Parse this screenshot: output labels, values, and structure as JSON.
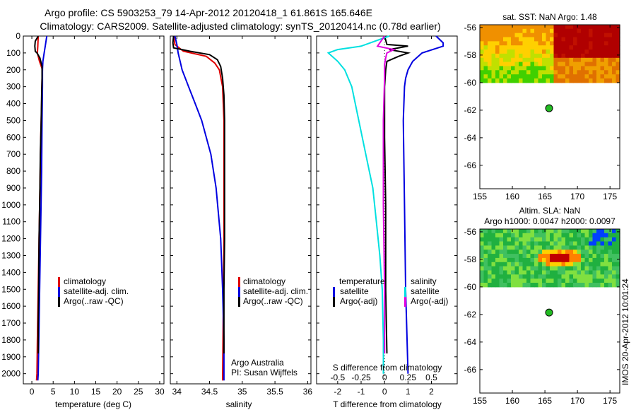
{
  "title_line1": "Argo profile: CS 5903253_79 14-Apr-2012 20120418_1 61.861S 165.646E",
  "title_line2": "Climatology: CARS2009. Satellite-adjusted climatology: synTS_20120414.nc (0.78d earlier)",
  "stamp": "IMOS 20-Apr-2012 10:01:24",
  "colors": {
    "red": "#e00000",
    "blue": "#0000e0",
    "black": "#000000",
    "cyan": "#00e0e0",
    "magenta": "#e000e0",
    "green": "#22bb22"
  },
  "chart_data": [
    {
      "type": "line",
      "xlabel": "temperature (deg C)",
      "xticks": [
        "0",
        "5",
        "10",
        "15",
        "20",
        "25",
        "30"
      ],
      "xlim": [
        -2,
        31
      ],
      "ylim": [
        2060,
        0
      ],
      "yticks": [
        "0",
        "100",
        "200",
        "300",
        "400",
        "500",
        "600",
        "700",
        "800",
        "900",
        "1000",
        "1100",
        "1200",
        "1300",
        "1400",
        "1500",
        "1600",
        "1700",
        "1800",
        "1900",
        "2000"
      ],
      "legend": [
        "climatology",
        "satellite-adj. clim.",
        "Argo(..raw -QC)"
      ],
      "series": [
        {
          "name": "climatology",
          "color": "red",
          "depth": [
            0,
            60,
            100,
            150,
            200,
            250,
            400,
            600,
            900,
            1200,
            1500,
            1800,
            2000,
            2040
          ],
          "values": [
            1.5,
            1.4,
            1.3,
            1.8,
            2.5,
            2.4,
            2.3,
            2.1,
            1.9,
            1.7,
            1.5,
            1.3,
            1.2,
            1.1
          ]
        },
        {
          "name": "satellite-adj. clim.",
          "color": "blue",
          "depth": [
            0,
            50,
            100,
            150,
            200,
            300,
            500,
            800,
            1100,
            1400,
            1700,
            2000,
            2040
          ],
          "values": [
            3.5,
            3.2,
            2.9,
            2.6,
            2.5,
            2.5,
            2.4,
            2.3,
            2.1,
            1.9,
            1.7,
            1.5,
            1.4
          ]
        },
        {
          "name": "Argo(..raw -QC)",
          "color": "black",
          "depth": [
            0,
            30,
            60,
            90,
            100,
            130,
            180,
            250,
            350,
            500,
            700,
            900,
            1200,
            1500,
            1700,
            1880
          ],
          "values": [
            1.5,
            0.8,
            0.7,
            0.8,
            1.2,
            1.9,
            2.4,
            2.4,
            2.3,
            2.2,
            2.0,
            1.9,
            1.7,
            1.6,
            1.5,
            1.5
          ]
        }
      ]
    },
    {
      "type": "line",
      "xlabel": "salinity",
      "xticks": [
        "34",
        "34.5",
        "35",
        "35.5",
        "36"
      ],
      "xlim": [
        33.9,
        36.05
      ],
      "ylim": [
        2060,
        0
      ],
      "legend": [
        "climatology",
        "satellite-adj. clim.",
        "Argo(..raw -QC)"
      ],
      "annotation": [
        "Argo Australia",
        "PI: Susan Wijffels"
      ],
      "series": [
        {
          "name": "climatology",
          "color": "red",
          "depth": [
            0,
            50,
            90,
            120,
            160,
            200,
            300,
            500,
            800,
            1200,
            1600,
            2040
          ],
          "values": [
            33.95,
            33.97,
            34.1,
            34.45,
            34.58,
            34.65,
            34.7,
            34.72,
            34.72,
            34.72,
            34.71,
            34.7
          ]
        },
        {
          "name": "satellite-adj. clim.",
          "color": "blue",
          "depth": [
            0,
            50,
            100,
            150,
            200,
            300,
            400,
            500,
            700,
            900,
            1200,
            1500,
            1800,
            2040
          ],
          "values": [
            33.97,
            34.0,
            34.02,
            34.05,
            34.08,
            34.18,
            34.28,
            34.38,
            34.52,
            34.6,
            34.67,
            34.7,
            34.72,
            34.72
          ]
        },
        {
          "name": "Argo(..raw -QC)",
          "color": "black",
          "depth": [
            0,
            40,
            70,
            90,
            110,
            140,
            180,
            250,
            350,
            500,
            800,
            1200,
            1500,
            1880
          ],
          "values": [
            33.95,
            33.94,
            33.95,
            34.2,
            34.5,
            34.62,
            34.67,
            34.7,
            34.72,
            34.73,
            34.73,
            34.73,
            34.72,
            34.72
          ]
        }
      ]
    },
    {
      "type": "line",
      "xlabel_top": "S difference from climatology",
      "xlabel": "T difference from climatology",
      "xticks_S": [
        "-0.5",
        "-0.25",
        "0",
        "0.25",
        "0.5"
      ],
      "xticks_T": [
        "-2",
        "-1",
        "0",
        "1",
        "2"
      ],
      "xlim_T": [
        -2.9,
        3.1
      ],
      "ylim": [
        2060,
        0
      ],
      "legend_left": {
        "header": "temperature",
        "items": [
          "satellite",
          "Argo(-adj)"
        ]
      },
      "legend_right": {
        "header": "salinity",
        "items": [
          "satellite",
          "Argo(-adj)"
        ]
      },
      "series": [
        {
          "name": "temperature satellite",
          "color": "blue",
          "depth": [
            0,
            40,
            60,
            100,
            150,
            200,
            250,
            300,
            500,
            1000,
            1500,
            2000
          ],
          "values_T": [
            2.2,
            2.5,
            2.5,
            1.6,
            1.2,
            1.0,
            0.9,
            0.85,
            0.8,
            0.85,
            0.9,
            1.0
          ]
        },
        {
          "name": "temperature Argo(-adj)",
          "color": "black",
          "depth": [
            0,
            50,
            60,
            80,
            100,
            120,
            150,
            200,
            300,
            600,
            1000,
            1500,
            1880
          ],
          "values_T": [
            0,
            0.1,
            1.0,
            0.2,
            1.0,
            0.6,
            0.1,
            0.05,
            0,
            0,
            0.05,
            0.05,
            0.1
          ]
        },
        {
          "name": "salinity satellite",
          "color": "cyan",
          "depth": [
            0,
            60,
            80,
            100,
            150,
            200,
            300,
            500,
            700,
            900,
            1100,
            1300,
            1500,
            1800,
            2000
          ],
          "values_T": [
            0.2,
            -1.0,
            -2.0,
            -2.4,
            -2.0,
            -1.7,
            -1.4,
            -1.1,
            -0.8,
            -0.5,
            -0.35,
            -0.2,
            -0.1,
            -0.05,
            -0.05
          ]
        },
        {
          "name": "salinity Argo(-adj)",
          "color": "magenta",
          "depth": [
            0,
            60,
            80,
            100,
            130,
            170,
            250,
            500,
            1000,
            1500,
            1880
          ],
          "values_T": [
            0,
            -0.3,
            0.4,
            0.1,
            0.05,
            0,
            0,
            -0.05,
            -0.05,
            0,
            0
          ]
        }
      ]
    },
    {
      "type": "heatmap",
      "title": "sat. SST: NaN  Argo: 1.48",
      "xticks": [
        "155",
        "160",
        "165",
        "170",
        "175"
      ],
      "yticks": [
        "-56",
        "-58",
        "-60",
        "-62",
        "-64",
        "-66"
      ],
      "xlim": [
        155,
        176.5
      ],
      "ylim": [
        -67.7,
        -55.8
      ],
      "marker": {
        "lon": 165.646,
        "lat": -61.861
      }
    },
    {
      "type": "heatmap",
      "title_line1": "Altim. SLA: NaN",
      "title_line2": "Argo h1000: 0.0047  h2000: 0.0097",
      "xticks": [
        "155",
        "160",
        "165",
        "170",
        "175"
      ],
      "yticks": [
        "-56",
        "-58",
        "-60",
        "-62",
        "-64",
        "-66"
      ],
      "xlim": [
        155,
        176.5
      ],
      "ylim": [
        -67.7,
        -55.8
      ],
      "marker": {
        "lon": 165.646,
        "lat": -61.861
      }
    }
  ]
}
